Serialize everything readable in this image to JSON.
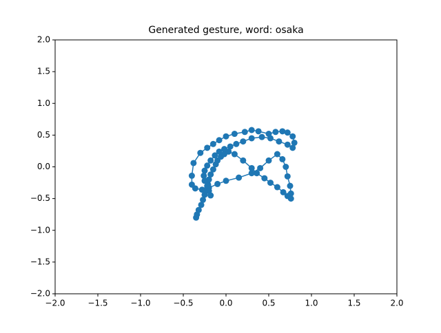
{
  "chart_data": {
    "type": "line",
    "title": "Generated gesture, word: osaka",
    "series": [
      {
        "color": "#1f77b4",
        "x": [
          -0.35,
          -0.34,
          -0.32,
          -0.29,
          -0.27,
          -0.25,
          -0.23,
          -0.21,
          -0.2,
          -0.18,
          -0.15,
          -0.12,
          -0.1,
          -0.06,
          -0.02,
          0.03,
          0.1,
          0.2,
          0.3,
          0.36,
          0.45,
          0.52,
          0.6,
          0.67,
          0.72,
          0.76,
          0.76,
          0.75,
          0.72,
          0.7,
          0.66,
          0.6,
          0.5,
          0.4,
          0.3,
          0.15,
          0.0,
          -0.1,
          -0.2,
          -0.28,
          -0.36,
          -0.4,
          -0.4,
          -0.38,
          -0.3,
          -0.22,
          -0.15,
          -0.08,
          0.0,
          0.1,
          0.22,
          0.3,
          0.38,
          0.5,
          0.58,
          0.66,
          0.72,
          0.78,
          0.8,
          0.78,
          0.72,
          0.62,
          0.52,
          0.42,
          0.3,
          0.2,
          0.12,
          0.05,
          -0.02,
          -0.08,
          -0.13,
          -0.18,
          -0.22,
          -0.25,
          -0.26,
          -0.25,
          -0.22,
          -0.2,
          -0.18
        ],
        "values": [
          -0.8,
          -0.75,
          -0.68,
          -0.6,
          -0.52,
          -0.44,
          -0.36,
          -0.28,
          -0.2,
          -0.12,
          -0.04,
          0.04,
          0.1,
          0.16,
          0.2,
          0.24,
          0.2,
          0.1,
          -0.02,
          -0.1,
          -0.18,
          -0.25,
          -0.32,
          -0.4,
          -0.46,
          -0.5,
          -0.42,
          -0.3,
          -0.15,
          0.0,
          0.12,
          0.2,
          0.1,
          -0.02,
          -0.1,
          -0.17,
          -0.22,
          -0.27,
          -0.33,
          -0.36,
          -0.34,
          -0.28,
          -0.14,
          0.06,
          0.22,
          0.3,
          0.36,
          0.42,
          0.48,
          0.52,
          0.55,
          0.58,
          0.56,
          0.52,
          0.55,
          0.56,
          0.54,
          0.48,
          0.38,
          0.3,
          0.35,
          0.4,
          0.45,
          0.47,
          0.45,
          0.4,
          0.36,
          0.32,
          0.28,
          0.24,
          0.18,
          0.1,
          0.02,
          -0.06,
          -0.14,
          -0.22,
          -0.3,
          -0.38,
          -0.45
        ]
      }
    ],
    "xlim": [
      -2,
      2
    ],
    "ylim": [
      -2,
      2
    ],
    "xticks": [
      {
        "value": -2,
        "label": "−2.0"
      },
      {
        "value": -1.5,
        "label": "−1.5"
      },
      {
        "value": -1,
        "label": "−1.0"
      },
      {
        "value": -0.5,
        "label": "−0.5"
      },
      {
        "value": 0,
        "label": "0.0"
      },
      0.5,
      {
        "value": 1,
        "label": "1.0"
      },
      1.5,
      {
        "value": 2,
        "label": "2.0"
      }
    ],
    "yticks": [
      {
        "value": -2,
        "label": "−2.0"
      },
      {
        "value": -1.5,
        "label": "−1.5"
      },
      {
        "value": -1,
        "label": "−1.0"
      },
      {
        "value": -0.5,
        "label": "−0.5"
      },
      {
        "value": 0,
        "label": "0.0"
      },
      0.5,
      {
        "value": 1,
        "label": "1.0"
      },
      1.5,
      {
        "value": 2,
        "label": "2.0"
      }
    ]
  }
}
